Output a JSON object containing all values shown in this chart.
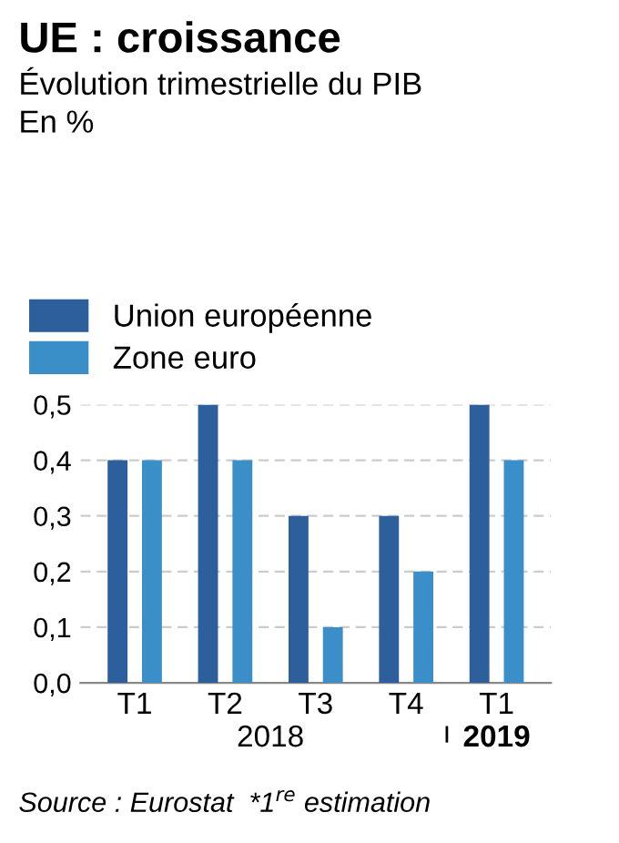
{
  "chart_data": {
    "type": "bar",
    "title": "UE : croissance",
    "subtitle": "Évolution trimestrielle du PIB",
    "categories": [
      "T1",
      "T2",
      "T3",
      "T4",
      "T1"
    ],
    "series": [
      {
        "name": "Union européenne",
        "color": "#2d5f9c",
        "values": [
          0.4,
          0.5,
          0.3,
          0.3,
          0.5
        ]
      },
      {
        "name": "Zone euro",
        "color": "#3a8fc9",
        "values": [
          0.4,
          0.4,
          0.1,
          0.2,
          0.4
        ]
      }
    ],
    "ylim": [
      0,
      0.5
    ],
    "yticks": [
      {
        "value": 0,
        "label": "0,0"
      },
      {
        "value": 0.1,
        "label": "0,1"
      },
      {
        "value": 0.2,
        "label": "0,2"
      },
      {
        "value": 0.3,
        "label": "0,3"
      },
      {
        "value": 0.4,
        "label": "0,4"
      },
      {
        "value": 0.5,
        "label": "0,5"
      }
    ],
    "grid": "y",
    "legend": "top left",
    "annotations": [
      "En %",
      "2018",
      "2019",
      "Source : Eurostat  *1$^{re}$ estimation"
    ]
  }
}
